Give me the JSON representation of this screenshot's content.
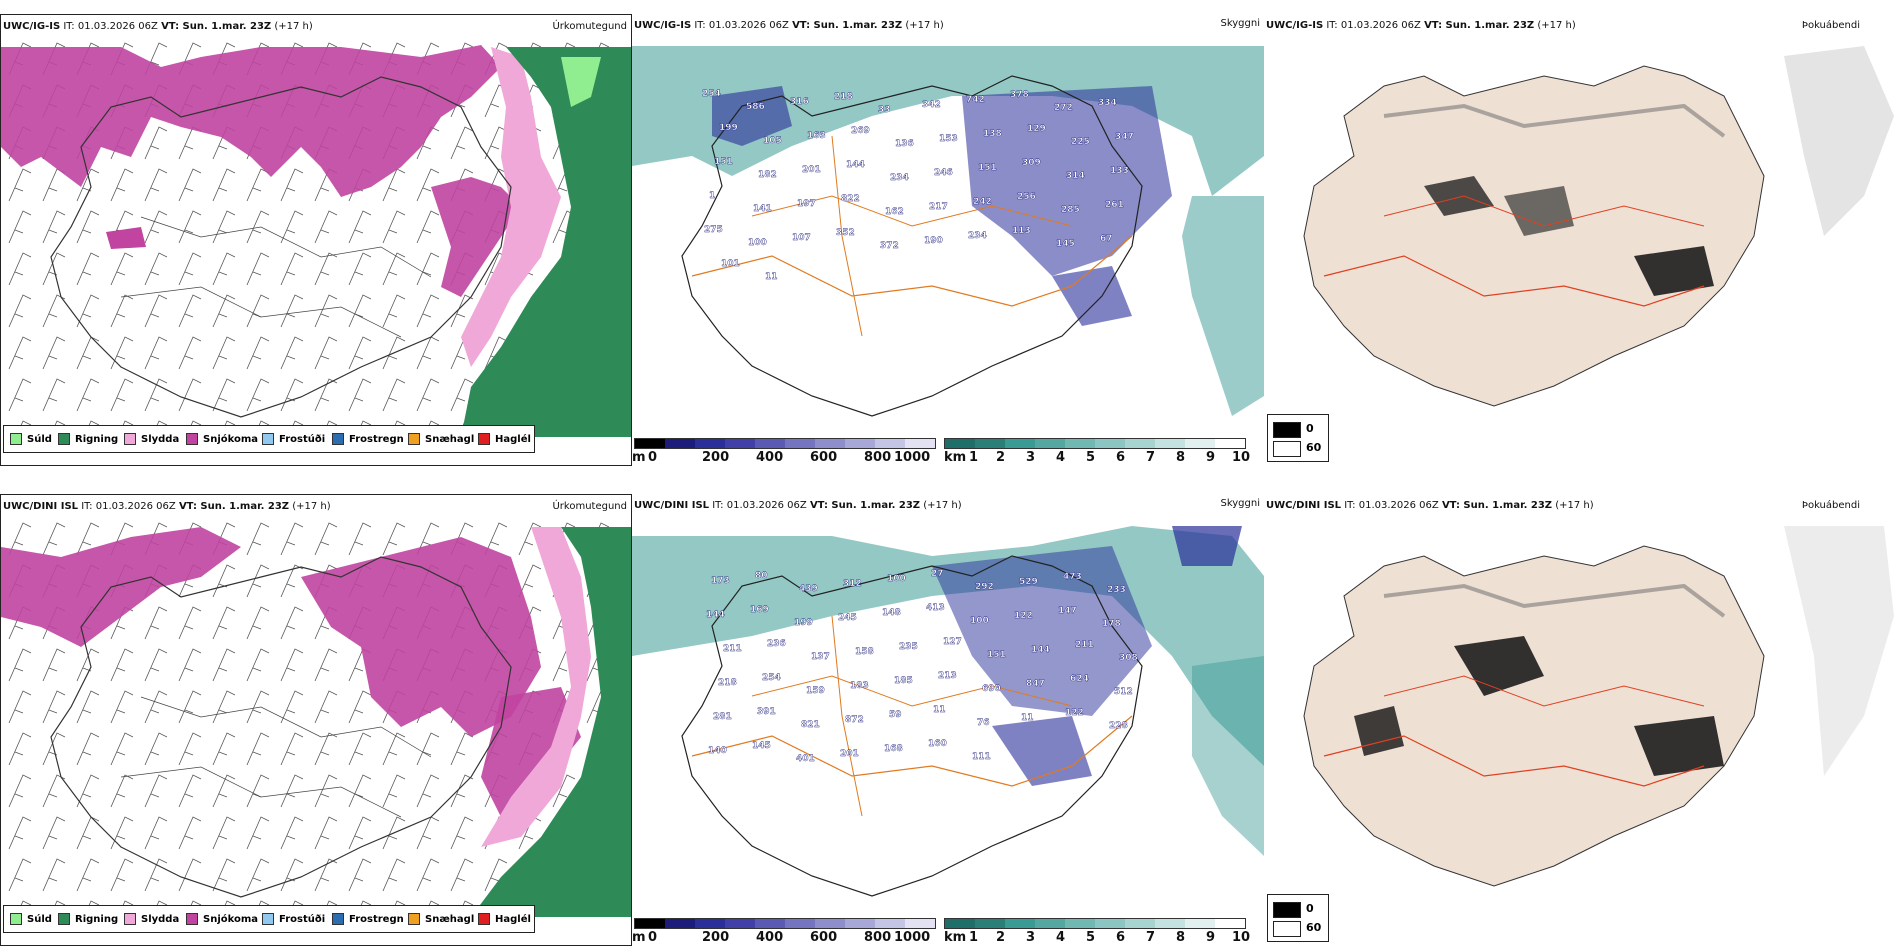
{
  "panels": [
    {
      "model": "UWC/IG-IS",
      "it": "IT: 01.03.2026 06Z",
      "vt": "VT: Sun. 1.mar. 23Z",
      "lead": "(+17 h)",
      "product": "Úrkomutegund"
    },
    {
      "model": "UWC/IG-IS",
      "it": "IT: 01.03.2026 06Z",
      "vt": "VT: Sun. 1.mar. 23Z",
      "lead": "(+17 h)",
      "product": "Skyggni"
    },
    {
      "model": "UWC/IG-IS",
      "it": "IT: 01.03.2026 06Z",
      "vt": "VT: Sun. 1.mar. 23Z",
      "lead": "(+17 h)",
      "product": "Þokuábendi"
    },
    {
      "model": "UWC/DINI ISL",
      "it": "IT: 01.03.2026 06Z",
      "vt": "VT: Sun. 1.mar. 23Z",
      "lead": "(+17 h)",
      "product": "Úrkomutegund"
    },
    {
      "model": "UWC/DINI ISL",
      "it": "IT: 01.03.2026 06Z",
      "vt": "VT: Sun. 1.mar. 23Z",
      "lead": "(+17 h)",
      "product": "Skyggni"
    },
    {
      "model": "UWC/DINI ISL",
      "it": "IT: 01.03.2026 06Z",
      "vt": "VT: Sun. 1.mar. 23Z",
      "lead": "(+17 h)",
      "product": "Þokuábendi"
    }
  ],
  "precip_legend": [
    {
      "label": "Súld",
      "color": "#90ee90"
    },
    {
      "label": "Rigning",
      "color": "#2e8b57"
    },
    {
      "label": "Slydda",
      "color": "#f0a8d8"
    },
    {
      "label": "Snjókoma",
      "color": "#c044a0"
    },
    {
      "label": "Frostúði",
      "color": "#90c8f0"
    },
    {
      "label": "Frostregn",
      "color": "#2c6cb0"
    },
    {
      "label": "Snæhagl",
      "color": "#f0a020"
    },
    {
      "label": "Haglél",
      "color": "#e02020"
    }
  ],
  "ceiling_scale": {
    "unit": "m",
    "ticks": [
      "0",
      "200",
      "400",
      "600",
      "800",
      "1000"
    ]
  },
  "visibility_scale": {
    "unit": "km",
    "ticks": [
      "1",
      "2",
      "3",
      "4",
      "5",
      "6",
      "7",
      "8",
      "9",
      "10"
    ]
  },
  "fog_legend": {
    "low": "0",
    "high": "60"
  },
  "top_labels": [
    "254",
    "586",
    "316",
    "218",
    "33",
    "342",
    "742",
    "378",
    "272",
    "334",
    "199",
    "105",
    "163",
    "269",
    "136",
    "153",
    "138",
    "129",
    "225",
    "347",
    "151",
    "182",
    "201",
    "144",
    "234",
    "246",
    "151",
    "309",
    "314",
    "133",
    "1",
    "141",
    "197",
    "822",
    "162",
    "217",
    "242",
    "256",
    "285",
    "261",
    "275",
    "100",
    "107",
    "352",
    "372",
    "190",
    "234",
    "113",
    "145",
    "67",
    "101",
    "11"
  ],
  "bottom_labels": [
    "173",
    "80",
    "439",
    "312",
    "100",
    "27",
    "292",
    "529",
    "473",
    "233",
    "144",
    "169",
    "199",
    "245",
    "148",
    "413",
    "100",
    "122",
    "147",
    "178",
    "211",
    "236",
    "137",
    "158",
    "235",
    "127",
    "151",
    "144",
    "211",
    "308",
    "218",
    "254",
    "159",
    "183",
    "185",
    "213",
    "690",
    "847",
    "624",
    "512",
    "281",
    "391",
    "821",
    "872",
    "59",
    "11",
    "76",
    "11",
    "122",
    "228",
    "140",
    "145",
    "401",
    "201",
    "168",
    "160",
    "111"
  ]
}
